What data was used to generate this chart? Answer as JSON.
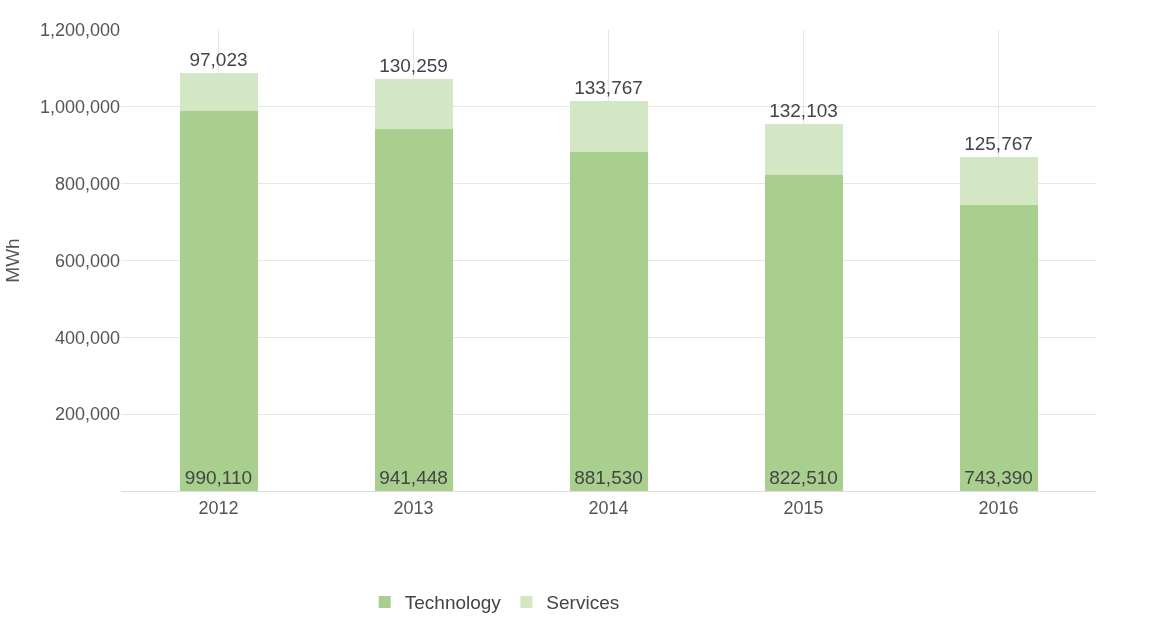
{
  "chart_data": {
    "type": "bar",
    "stacked": true,
    "ylabel": "MWh",
    "categories": [
      "2012",
      "2013",
      "2014",
      "2015",
      "2016"
    ],
    "series": [
      {
        "name": "Technology",
        "color": "#a9cf8f",
        "values": [
          990110,
          941448,
          881530,
          822510,
          743390
        ],
        "value_labels": [
          "990,110",
          "941,448",
          "881,530",
          "822,510",
          "743,390"
        ]
      },
      {
        "name": "Services",
        "color": "#d3e7c4",
        "values": [
          97023,
          130259,
          133767,
          132103,
          125767
        ],
        "value_labels": [
          "97,023",
          "130,259",
          "133,767",
          "132,103",
          "125,767"
        ]
      }
    ],
    "ylim": [
      0,
      1200000
    ],
    "yticks": [
      {
        "value": 200000,
        "label": "200,000"
      },
      {
        "value": 400000,
        "label": "400,000"
      },
      {
        "value": 600000,
        "label": "600,000"
      },
      {
        "value": 800000,
        "label": "800,000"
      },
      {
        "value": 1000000,
        "label": "1,000,000"
      },
      {
        "value": 1200000,
        "label": "1,200,000"
      }
    ],
    "grid": true,
    "legend": "bottom"
  }
}
